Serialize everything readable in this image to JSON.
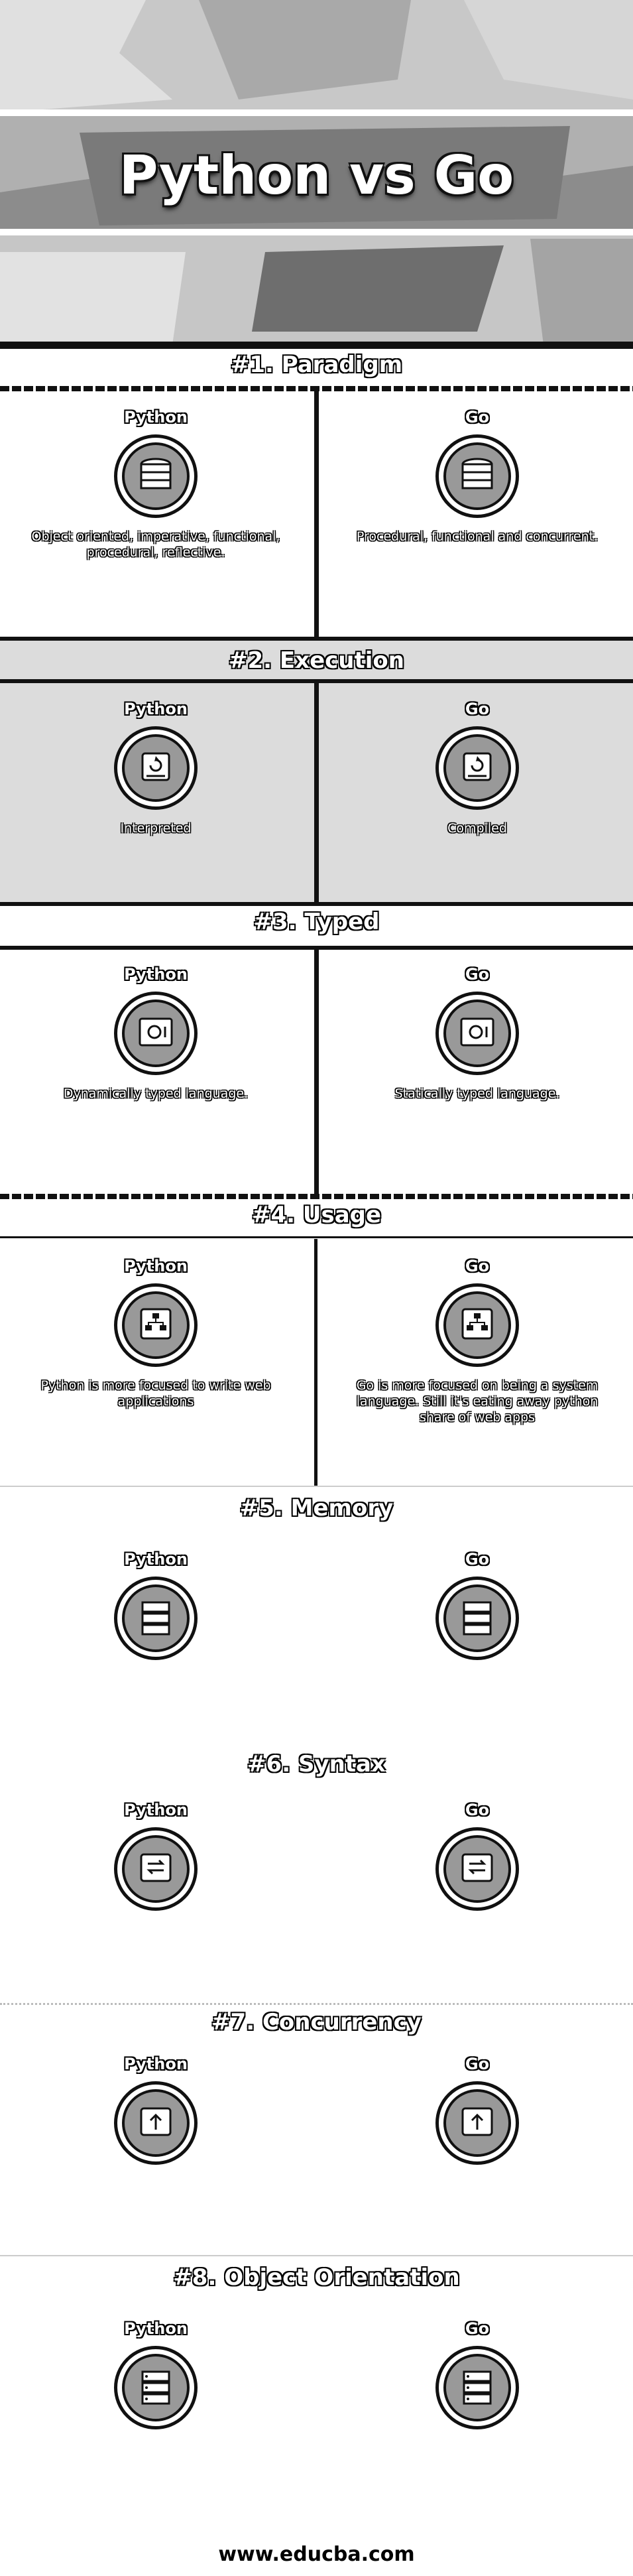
{
  "title": "Python vs Go",
  "sections": [
    {
      "heading": "#1. Paradigm",
      "left": {
        "lang": "Python",
        "text": "Object oriented, imperative, functional, procedural, reflective."
      },
      "right": {
        "lang": "Go",
        "text": "Procedural, functional and concurrent."
      },
      "icon": "database-icon"
    },
    {
      "heading": "#2. Execution",
      "left": {
        "lang": "Python",
        "text": "Interpreted"
      },
      "right": {
        "lang": "Go",
        "text": "Compiled"
      },
      "icon": "refresh-drive-icon"
    },
    {
      "heading": "#3. Typed",
      "left": {
        "lang": "Python",
        "text": "Dynamically typed language."
      },
      "right": {
        "lang": "Go",
        "text": "Statically typed language."
      },
      "icon": "safe-icon"
    },
    {
      "heading": "#4. Usage",
      "left": {
        "lang": "Python",
        "text": "Python is more focused to write web applications"
      },
      "right": {
        "lang": "Go",
        "text": "Go is more focused on being a system language. Still it's eating away python share of web apps"
      },
      "icon": "network-drive-icon"
    },
    {
      "heading": "#5. Memory",
      "left": {
        "lang": "Python",
        "text": ""
      },
      "right": {
        "lang": "Go",
        "text": ""
      },
      "icon": "server-icon"
    },
    {
      "heading": "#6. Syntax",
      "left": {
        "lang": "Python",
        "text": ""
      },
      "right": {
        "lang": "Go",
        "text": ""
      },
      "icon": "transfer-drive-icon"
    },
    {
      "heading": "#7. Concurrency",
      "left": {
        "lang": "Python",
        "text": ""
      },
      "right": {
        "lang": "Go",
        "text": ""
      },
      "icon": "upload-drive-icon"
    },
    {
      "heading": "#8. Object Orientation",
      "left": {
        "lang": "Python",
        "text": ""
      },
      "right": {
        "lang": "Go",
        "text": ""
      },
      "icon": "server-stack-icon"
    }
  ],
  "footer": "www.educba.com"
}
